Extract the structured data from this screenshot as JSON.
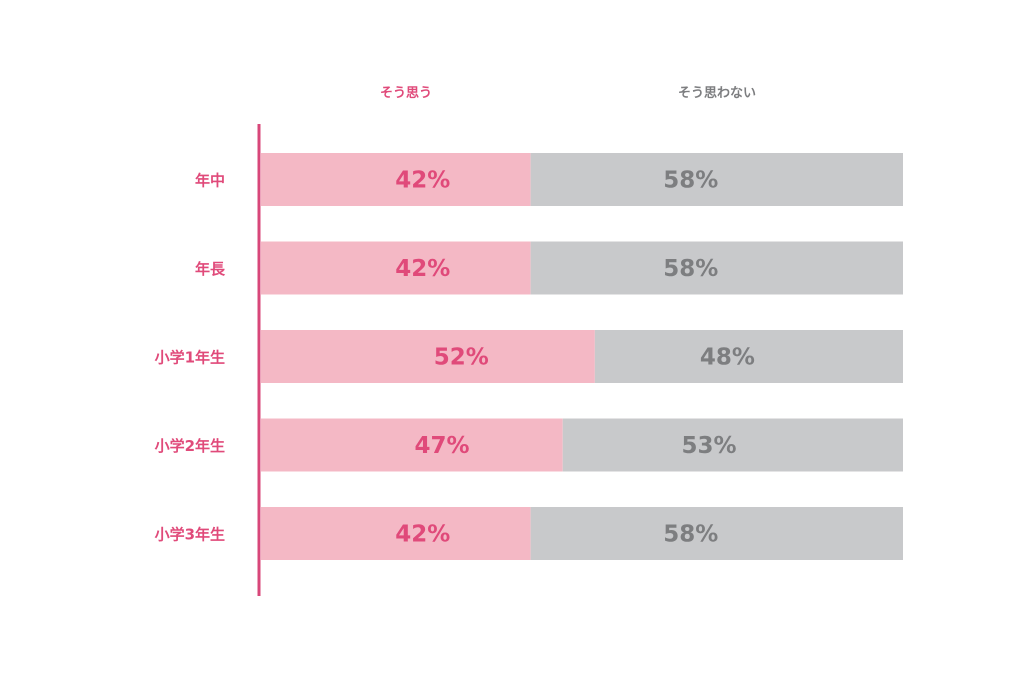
{
  "chart_data": {
    "type": "bar",
    "orientation": "horizontal",
    "stacked": true,
    "percent_stacked": true,
    "legend_placement": "top",
    "grid": false,
    "categories": [
      "年中",
      "年長",
      "小学1年生",
      "小学2年生",
      "小学3年生"
    ],
    "series": [
      {
        "name": "そう思う",
        "color": "#f4b8c5",
        "label_color": "#e04a7a",
        "values": [
          42,
          42,
          52,
          47,
          42
        ],
        "value_labels": [
          "42%",
          "42%",
          "52%",
          "47%",
          "42%"
        ]
      },
      {
        "name": "そう思わない",
        "color": "#c8c9cb",
        "label_color": "#7d7e80",
        "values": [
          58,
          58,
          48,
          53,
          58
        ],
        "value_labels": [
          "58%",
          "58%",
          "48%",
          "53%",
          "58%"
        ]
      }
    ],
    "xlim": [
      0,
      100
    ]
  },
  "colors": {
    "accent": "#e04a7a",
    "axis_line": "#d8477a",
    "legend_muted": "#7d7e80"
  }
}
